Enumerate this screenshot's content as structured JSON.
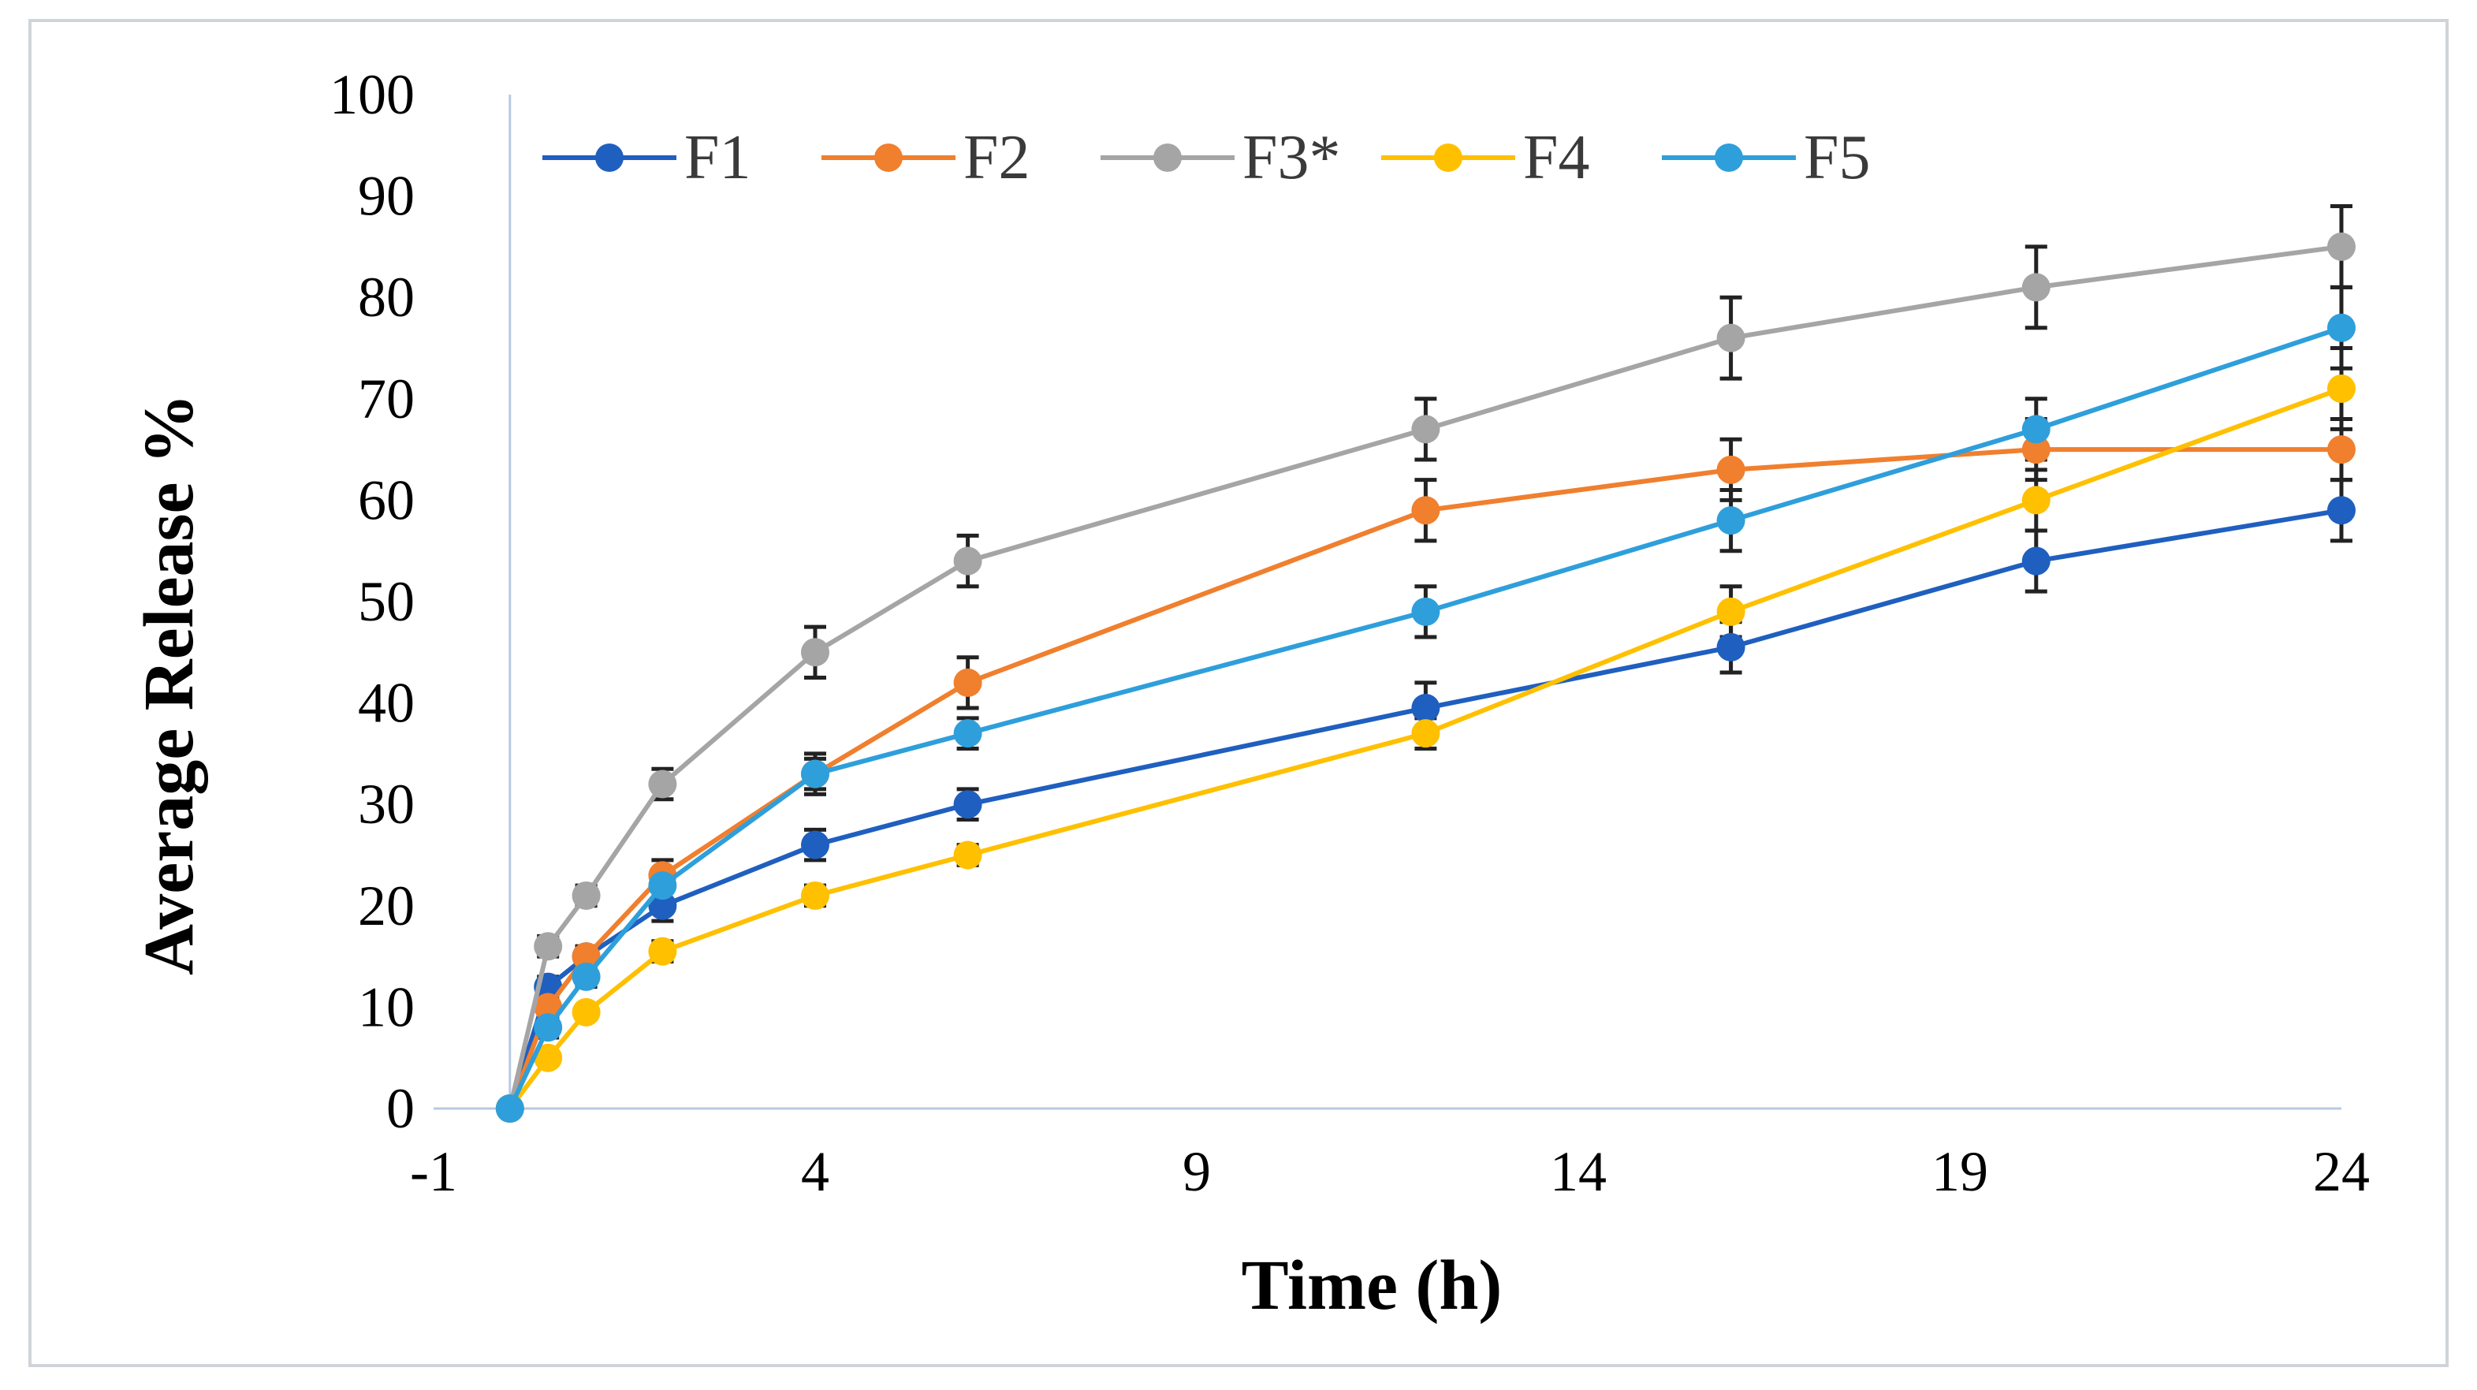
{
  "chart_data": {
    "type": "line",
    "title": "",
    "xlabel": "Time (h)",
    "ylabel": "Average Release %",
    "xlim": [
      -1,
      24
    ],
    "ylim": [
      0,
      100
    ],
    "x_ticks": [
      "-1",
      "4",
      "9",
      "14",
      "19",
      "24"
    ],
    "y_ticks": [
      "0",
      "10",
      "20",
      "30",
      "40",
      "50",
      "60",
      "70",
      "80",
      "90",
      "100"
    ],
    "grid": false,
    "legend_position": "top",
    "x": [
      0,
      0.5,
      1,
      2,
      4,
      6,
      12,
      16,
      20,
      24
    ],
    "series": [
      {
        "name": "F1",
        "color": "#1f5fbf",
        "values": [
          0,
          12,
          15,
          20,
          26,
          30,
          39.5,
          45.5,
          54,
          59
        ],
        "errors": [
          0,
          1,
          1,
          1.5,
          1.5,
          1.5,
          2.5,
          2.5,
          3,
          3
        ]
      },
      {
        "name": "F2",
        "color": "#f07f2e",
        "values": [
          0,
          10,
          15,
          23,
          33,
          42,
          59,
          63,
          65,
          65
        ],
        "errors": [
          0,
          1,
          1,
          1.5,
          2,
          2.5,
          3,
          3,
          3,
          3
        ]
      },
      {
        "name": "F3*",
        "color": "#a5a5a5",
        "values": [
          0,
          16,
          21,
          32,
          45,
          54,
          67,
          76,
          81,
          85
        ],
        "errors": [
          0,
          1,
          1,
          1.5,
          2.5,
          2.5,
          3,
          4,
          4,
          4
        ]
      },
      {
        "name": "F4",
        "color": "#ffc000",
        "values": [
          0,
          5,
          9.5,
          15.5,
          21,
          25,
          37,
          49,
          60,
          71
        ],
        "errors": [
          0,
          0.5,
          0.5,
          1,
          1,
          1,
          1.5,
          2.5,
          3,
          4
        ]
      },
      {
        "name": "F5",
        "color": "#2e9fdb",
        "values": [
          0,
          8,
          13,
          22,
          33,
          37,
          49,
          58,
          67,
          77
        ],
        "errors": [
          0,
          1,
          1,
          1.5,
          1.5,
          1.5,
          2.5,
          3,
          3,
          4
        ]
      }
    ]
  }
}
